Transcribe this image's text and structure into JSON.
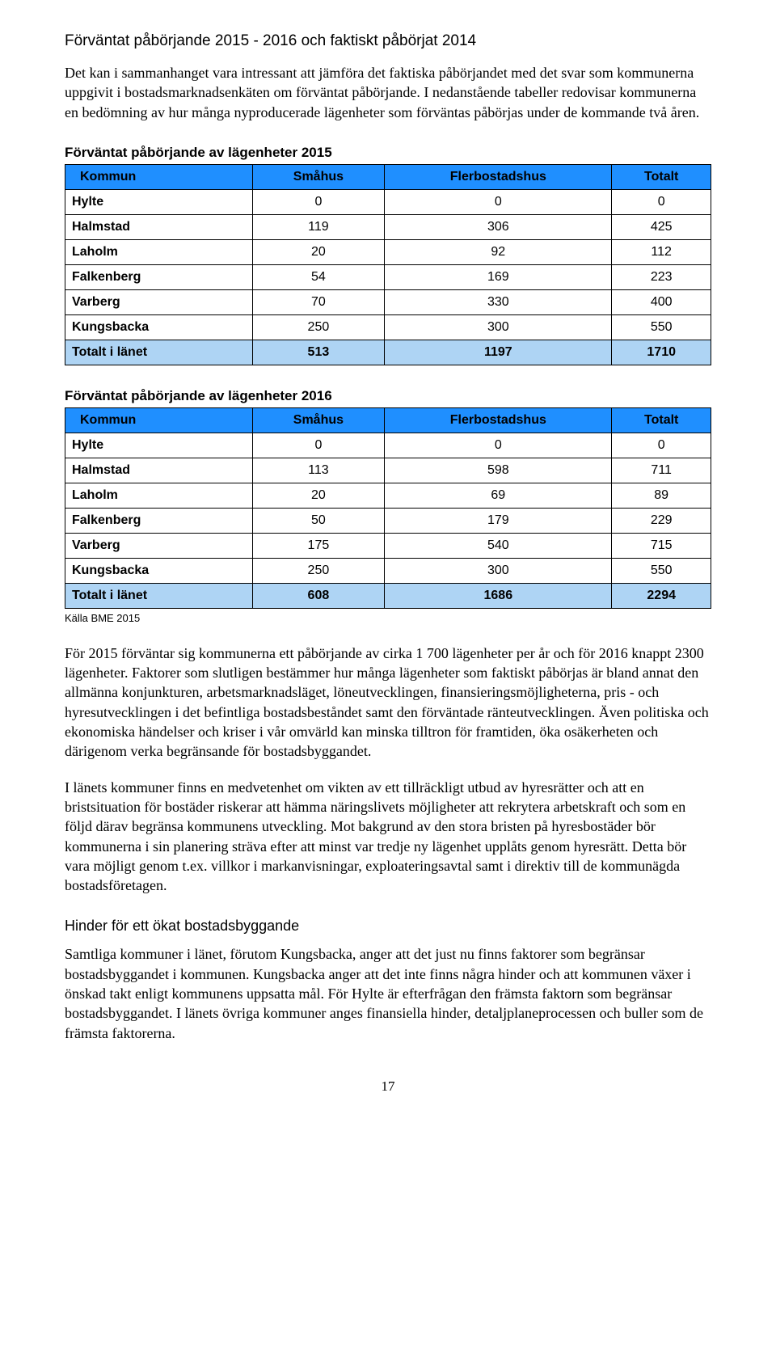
{
  "heading1": "Förväntat påbörjande 2015 - 2016 och faktiskt påbörjat 2014",
  "intro": "Det kan i sammanhanget vara intressant att jämföra det faktiska påbörjandet med det svar som kommunerna uppgivit i bostadsmarknadsenkäten om förväntat påbörjande. I nedanstående tabeller redovisar kommunerna en bedömning av hur många nyproducerade lägenheter som förväntas påbörjas under de kommande två åren.",
  "table2015": {
    "title": "Förväntat påbörjande av lägenheter 2015",
    "type": "table",
    "header_bg": "#1f8fff",
    "total_bg": "#aed4f4",
    "border_color": "#000000",
    "columns": [
      "Kommun",
      "Småhus",
      "Flerbostadshus",
      "Totalt"
    ],
    "rows": [
      [
        "Hylte",
        "0",
        "0",
        "0"
      ],
      [
        "Halmstad",
        "119",
        "306",
        "425"
      ],
      [
        "Laholm",
        "20",
        "92",
        "112"
      ],
      [
        "Falkenberg",
        "54",
        "169",
        "223"
      ],
      [
        "Varberg",
        "70",
        "330",
        "400"
      ],
      [
        "Kungsbacka",
        "250",
        "300",
        "550"
      ]
    ],
    "total": [
      "Totalt i länet",
      "513",
      "1197",
      "1710"
    ]
  },
  "table2016": {
    "title": "Förväntat påbörjande av lägenheter 2016",
    "type": "table",
    "header_bg": "#1f8fff",
    "total_bg": "#aed4f4",
    "border_color": "#000000",
    "columns": [
      "Kommun",
      "Småhus",
      "Flerbostadshus",
      "Totalt"
    ],
    "rows": [
      [
        "Hylte",
        "0",
        "0",
        "0"
      ],
      [
        "Halmstad",
        "113",
        "598",
        "711"
      ],
      [
        "Laholm",
        "20",
        "69",
        "89"
      ],
      [
        "Falkenberg",
        "50",
        "179",
        "229"
      ],
      [
        "Varberg",
        "175",
        "540",
        "715"
      ],
      [
        "Kungsbacka",
        "250",
        "300",
        "550"
      ]
    ],
    "total": [
      "Totalt i länet",
      "608",
      "1686",
      "2294"
    ]
  },
  "source": "Källa BME 2015",
  "para2": "För 2015 förväntar sig kommunerna ett påbörjande av cirka 1 700 lägenheter per år och för 2016 knappt 2300 lägenheter. Faktorer som slutligen bestämmer hur många lägenheter som faktiskt påbörjas är bland annat den allmänna konjunkturen, arbetsmarknadsläget, löneutvecklingen, finansieringsmöjligheterna, pris - och hyresutvecklingen i det befintliga bostadsbeståndet samt den förväntade ränteutvecklingen. Även politiska och ekonomiska händelser och kriser i vår omvärld kan minska tilltron för framtiden, öka osäkerheten och därigenom verka begränsande för bostadsbyggandet.",
  "para3": "I länets kommuner finns en medvetenhet om vikten av ett tillräckligt utbud av hyresrätter och att en bristsituation för bostäder riskerar att hämma näringslivets möjligheter att rekrytera arbetskraft och som en följd därav begränsa kommunens utveckling. Mot bakgrund av den stora bristen på hyresbostäder bör kommunerna i sin planering sträva efter att minst var tredje ny lägenhet upplåts genom hyresrätt. Detta bör vara möjligt genom t.ex. villkor i markanvisningar, exploateringsavtal samt i direktiv till de kommunägda bostadsföretagen.",
  "subheading": "Hinder för ett ökat bostadsbyggande",
  "para4": "Samtliga kommuner i länet, förutom Kungsbacka, anger att det just nu finns faktorer som begränsar bostadsbyggandet i kommunen. Kungsbacka anger att det inte finns några hinder och att kommunen växer i önskad takt enligt kommunens uppsatta mål. För Hylte är efterfrågan den främsta faktorn som begränsar bostadsbyggandet. I länets övriga kommuner anges finansiella hinder, detaljplaneprocessen och buller som de främsta faktorerna.",
  "pageNum": "17"
}
